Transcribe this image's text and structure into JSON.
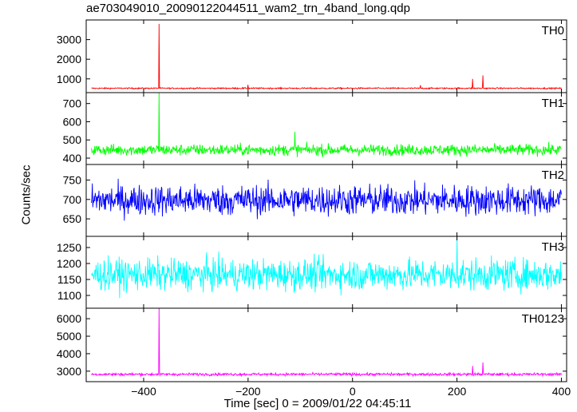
{
  "title": "ae703049010_20090122044511_wam2_trn_4band_long.qdp",
  "ylabel": "Counts/sec",
  "xlabel": "Time [sec] 0 = 2009/01/22 04:45:11",
  "chart_data": [
    {
      "type": "line",
      "name": "TH0",
      "color": "#ff0000",
      "xlim": [
        -510,
        410
      ],
      "ylim": [
        300,
        4000
      ],
      "yticks": [
        1000,
        2000,
        3000
      ],
      "baseline": 520,
      "noise": 25,
      "spikes": [
        {
          "x": -370,
          "y": 3800
        },
        {
          "x": -200,
          "y": 700
        },
        {
          "x": 130,
          "y": 680
        },
        {
          "x": 230,
          "y": 1000
        },
        {
          "x": 250,
          "y": 1180
        }
      ]
    },
    {
      "type": "line",
      "name": "TH1",
      "color": "#00ff00",
      "xlim": [
        -510,
        410
      ],
      "ylim": [
        365,
        760
      ],
      "yticks": [
        400,
        500,
        600,
        700
      ],
      "baseline": 445,
      "noise": 22,
      "spikes": [
        {
          "x": -370,
          "y": 760
        },
        {
          "x": -110,
          "y": 545
        }
      ]
    },
    {
      "type": "line",
      "name": "TH2",
      "color": "#0000ff",
      "xlim": [
        -510,
        410
      ],
      "ylim": [
        605,
        790
      ],
      "yticks": [
        650,
        700,
        750
      ],
      "baseline": 698,
      "noise": 28,
      "spikes": []
    },
    {
      "type": "line",
      "name": "TH3",
      "color": "#00ffff",
      "xlim": [
        -510,
        410
      ],
      "ylim": [
        1060,
        1285
      ],
      "yticks": [
        1100,
        1150,
        1200,
        1250
      ],
      "baseline": 1165,
      "noise": 35,
      "spikes": [
        {
          "x": 200,
          "y": 1285
        }
      ]
    },
    {
      "type": "line",
      "name": "TH0123",
      "color": "#ff00ff",
      "xlim": [
        -510,
        410
      ],
      "ylim": [
        2400,
        6600
      ],
      "yticks": [
        3000,
        4000,
        5000,
        6000
      ],
      "baseline": 2820,
      "noise": 55,
      "spikes": [
        {
          "x": -370,
          "y": 6600
        },
        {
          "x": 230,
          "y": 3300
        },
        {
          "x": 250,
          "y": 3500
        }
      ]
    }
  ],
  "xticks": [
    -400,
    -200,
    0,
    200,
    400
  ]
}
